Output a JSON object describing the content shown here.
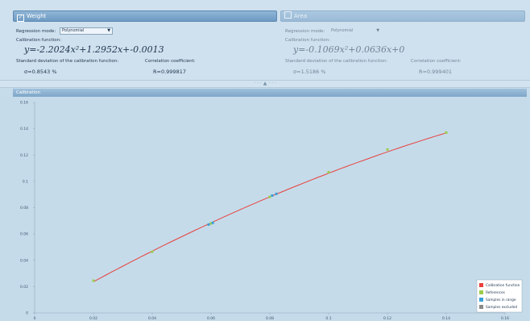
{
  "weight_panel": {
    "title": "Weight",
    "regression_label": "Regression mode:",
    "regression_value": "Polynomial",
    "calibration_label": "Calibration function:",
    "formula": "y=-2.2024x²+1.2952x+-0.0013",
    "std_label": "Standard deviation of the calibration function:",
    "corr_label": "Correlation coefficient:",
    "std_value": "σ=0.8543 %",
    "corr_value": "R=0.999817"
  },
  "area_panel": {
    "title": "Area",
    "regression_label": "Regression mode:",
    "regression_value": "Polynomial",
    "calibration_label": "Calibration function:",
    "formula": "y=-0.1069x²+0.0636x+0",
    "std_label": "Standard deviation of the calibration function:",
    "corr_label": "Correlation coefficient:",
    "std_value": "σ=1.5186 %",
    "corr_value": "R=0.999401"
  },
  "calibration_header": "Calibration",
  "colors": {
    "calibration": "#e8413c",
    "references": "#9acd4c",
    "samples_in_range": "#3aa0d8",
    "samples_excluded": "#8a8a8a"
  },
  "chart_data": {
    "type": "scatter",
    "xlim": [
      0,
      0.16
    ],
    "ylim": [
      0,
      0.16
    ],
    "x_ticks": [
      "0",
      "0.02",
      "0.04",
      "0.06",
      "0.08",
      "0.1",
      "0.12",
      "0.14",
      "0.16"
    ],
    "y_ticks": [
      "0",
      "0.02",
      "0.04",
      "0.06",
      "0.08",
      "0.1",
      "0.12",
      "0.14",
      "0.16"
    ],
    "curve": {
      "name": "Calibration function",
      "a": -2.2024,
      "b": 1.2952,
      "c": -0.0013,
      "x_start": 0.02,
      "x_end": 0.14
    },
    "references": {
      "name": "References",
      "points": [
        [
          0.02,
          0.0245
        ],
        [
          0.04,
          0.0465
        ],
        [
          0.06,
          0.068
        ],
        [
          0.08,
          0.0882
        ],
        [
          0.1,
          0.107
        ],
        [
          0.12,
          0.1242
        ],
        [
          0.14,
          0.1371
        ]
      ]
    },
    "samples_in_range": {
      "name": "Samples in range",
      "points": [
        [
          0.0592,
          0.0672
        ],
        [
          0.0606,
          0.0685
        ],
        [
          0.0808,
          0.0892
        ],
        [
          0.0822,
          0.0905
        ]
      ]
    },
    "samples_excluded": {
      "name": "Samples excluded",
      "points": []
    },
    "legend_position": "bottom-right"
  }
}
